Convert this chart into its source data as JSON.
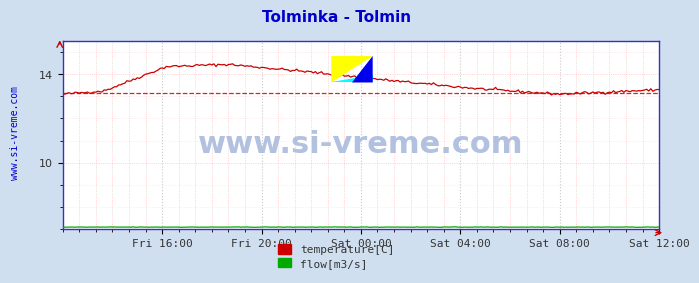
{
  "title": "Tolminka - Tolmin",
  "title_color": "#0000cc",
  "title_fontsize": 11,
  "bg_color": "#d0dff0",
  "plot_bg_color": "#ffffff",
  "watermark_text": "www.si-vreme.com",
  "watermark_color": "#aabbdd",
  "watermark_fontsize": 22,
  "ylabel_text": "www.si-vreme.com",
  "ylabel_color": "#0000cc",
  "ylabel_fontsize": 7,
  "xlim_start": 0,
  "xlim_end": 288,
  "ylim_bottom": 7.0,
  "ylim_top": 15.5,
  "yticks": [
    10,
    14
  ],
  "xtick_labels": [
    "Fri 16:00",
    "Fri 20:00",
    "Sat 00:00",
    "Sat 04:00",
    "Sat 08:00",
    "Sat 12:00"
  ],
  "xtick_positions": [
    48,
    96,
    144,
    192,
    240,
    288
  ],
  "grid_color_major": "#bbbbbb",
  "grid_color_minor": "#ffbbbb",
  "temp_color": "#cc0000",
  "flow_color": "#00aa00",
  "dashed_line_value": 13.15,
  "dashed_color": "#cc0000",
  "legend_temp_color": "#cc0000",
  "legend_flow_color": "#00aa00",
  "legend_temp_label": "temperature[C]",
  "legend_flow_label": "flow[m3/s]",
  "border_color": "#3333bb",
  "tick_color": "#333333",
  "tick_fontsize": 8
}
